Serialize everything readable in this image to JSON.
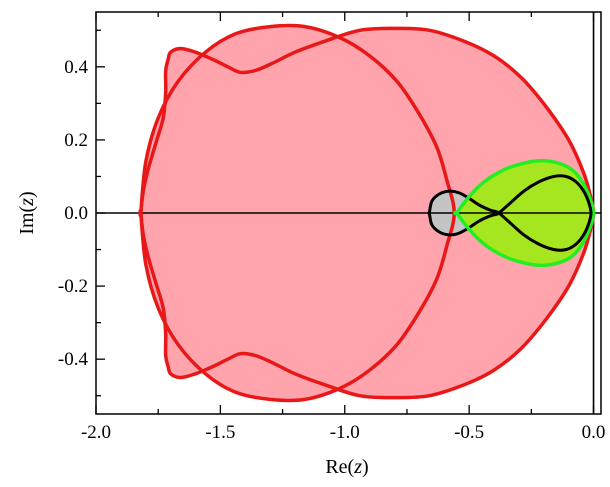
{
  "chart_data": {
    "type": "area",
    "title": "",
    "xlabel_main": "Re(",
    "xlabel_var": "z",
    "xlabel_close": ")",
    "ylabel_main": "Im(",
    "ylabel_var": "z",
    "ylabel_close": ")",
    "xlim": [
      -2.0,
      0.03
    ],
    "ylim": [
      -0.55,
      0.55
    ],
    "xticks": [
      -2.0,
      -1.5,
      -1.0,
      -0.5,
      0.0
    ],
    "xtick_labels": [
      "-2.0",
      "-1.5",
      "-1.0",
      "-0.5",
      "0.0"
    ],
    "yticks": [
      -0.4,
      -0.2,
      0.0,
      0.2,
      0.4
    ],
    "ytick_labels": [
      "-0.4",
      "-0.2",
      "0.0",
      "0.2",
      "0.4"
    ],
    "x_minor_step": 0.25,
    "y_minor_step": 0.1,
    "grid": false,
    "reference_lines": {
      "horizontal_y": 0.0,
      "vertical_x": 0.0
    },
    "colors": {
      "red_fill": "#ffa3ad",
      "red_line": "#e81818",
      "gray_fill": "#c4c4c4",
      "green_fill": "#a6e620",
      "green_line": "#22ee22",
      "black": "#000000"
    },
    "series": [
      {
        "style": "red",
        "points": [
          [
            -1.82,
            0.0
          ],
          [
            -1.81,
            0.06
          ],
          [
            -1.79,
            0.12
          ],
          [
            -1.76,
            0.19
          ],
          [
            -1.73,
            0.26
          ],
          [
            -1.72,
            0.33
          ],
          [
            -1.72,
            0.39
          ],
          [
            -1.71,
            0.42
          ],
          [
            -1.7,
            0.44
          ],
          [
            -1.66,
            0.45
          ],
          [
            -1.6,
            0.44
          ],
          [
            -1.53,
            0.42
          ],
          [
            -1.47,
            0.4
          ],
          [
            -1.42,
            0.385
          ],
          [
            -1.36,
            0.39
          ],
          [
            -1.29,
            0.41
          ],
          [
            -1.2,
            0.44
          ],
          [
            -1.08,
            0.47
          ],
          [
            -0.94,
            0.5
          ],
          [
            -0.8,
            0.505
          ],
          [
            -0.66,
            0.5
          ],
          [
            -0.52,
            0.47
          ],
          [
            -0.4,
            0.43
          ],
          [
            -0.29,
            0.37
          ],
          [
            -0.19,
            0.29
          ],
          [
            -0.1,
            0.2
          ],
          [
            -0.04,
            0.11
          ],
          [
            -0.01,
            0.04
          ],
          [
            0.0,
            0.0
          ]
        ]
      },
      {
        "style": "red",
        "points": [
          [
            -1.82,
            0.0
          ],
          [
            -1.8,
            0.14
          ],
          [
            -1.75,
            0.26
          ],
          [
            -1.67,
            0.36
          ],
          [
            -1.56,
            0.44
          ],
          [
            -1.44,
            0.49
          ],
          [
            -1.3,
            0.51
          ],
          [
            -1.16,
            0.51
          ],
          [
            -1.02,
            0.48
          ],
          [
            -0.9,
            0.43
          ],
          [
            -0.79,
            0.36
          ],
          [
            -0.7,
            0.27
          ],
          [
            -0.63,
            0.18
          ],
          [
            -0.59,
            0.09
          ],
          [
            -0.56,
            0.0
          ]
        ]
      },
      {
        "style": "gray",
        "points": [
          [
            -0.66,
            0.0
          ],
          [
            -0.65,
            0.032
          ],
          [
            -0.62,
            0.052
          ],
          [
            -0.58,
            0.06
          ],
          [
            -0.54,
            0.055
          ],
          [
            -0.5,
            0.04
          ],
          [
            -0.46,
            0.022
          ],
          [
            -0.42,
            0.009
          ],
          [
            -0.38,
            0.0
          ]
        ]
      },
      {
        "style": "green",
        "points": [
          [
            -0.55,
            0.0
          ],
          [
            -0.5,
            0.045
          ],
          [
            -0.44,
            0.085
          ],
          [
            -0.37,
            0.115
          ],
          [
            -0.3,
            0.133
          ],
          [
            -0.22,
            0.143
          ],
          [
            -0.15,
            0.138
          ],
          [
            -0.09,
            0.12
          ],
          [
            -0.05,
            0.09
          ],
          [
            -0.02,
            0.05
          ],
          [
            0.0,
            0.0
          ]
        ]
      },
      {
        "style": "black",
        "points": [
          [
            -0.38,
            0.0
          ],
          [
            -0.33,
            0.03
          ],
          [
            -0.28,
            0.06
          ],
          [
            -0.22,
            0.085
          ],
          [
            -0.16,
            0.1
          ],
          [
            -0.11,
            0.1
          ],
          [
            -0.07,
            0.085
          ],
          [
            -0.04,
            0.06
          ],
          [
            -0.02,
            0.03
          ],
          [
            -0.01,
            0.0
          ]
        ]
      }
    ]
  }
}
